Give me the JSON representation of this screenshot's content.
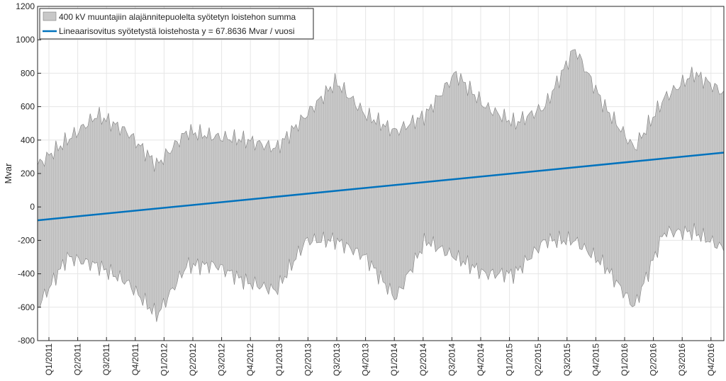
{
  "chart_data": {
    "type": "area",
    "ylabel": "Mvar",
    "ylim": [
      -800,
      1200
    ],
    "y_ticks": [
      -800,
      -600,
      -400,
      -200,
      0,
      200,
      400,
      600,
      800,
      1000,
      1200
    ],
    "x_ticks": [
      "Q1/2011",
      "Q2/2011",
      "Q3/2011",
      "Q4/2011",
      "Q1/2012",
      "Q2/2012",
      "Q3/2012",
      "Q4/2012",
      "Q1/2013",
      "Q2/2013",
      "Q3/2013",
      "Q4/2013",
      "Q1/2014",
      "Q2/2014",
      "Q3/2014",
      "Q4/2014",
      "Q1/2015",
      "Q2/2015",
      "Q3/2015",
      "Q4/2015",
      "Q1/2016",
      "Q2/2016",
      "Q3/2016",
      "Q4/2016"
    ],
    "grid": true,
    "legend_position": "top-left",
    "series": [
      {
        "name": "400 kV muuntajiin alajännitepuolelta syötetyn loistehon summa",
        "kind": "area",
        "color": "#c8c8c8",
        "edge_color": "#7f7f7f",
        "x": [
          "Q1/2011",
          "Q2/2011",
          "Q3/2011",
          "Q4/2011",
          "Q1/2012",
          "Q2/2012",
          "Q3/2012",
          "Q4/2012",
          "Q1/2013",
          "Q2/2013",
          "Q3/2013",
          "Q4/2013",
          "Q1/2014",
          "Q2/2014",
          "Q3/2014",
          "Q4/2014",
          "Q1/2015",
          "Q2/2015",
          "Q3/2015",
          "Q4/2015",
          "Q1/2016",
          "Q2/2016",
          "Q3/2016",
          "Q4/2016"
        ],
        "upper": [
          250,
          400,
          550,
          450,
          250,
          450,
          420,
          400,
          350,
          550,
          750,
          550,
          450,
          550,
          800,
          600,
          500,
          600,
          950,
          600,
          350,
          650,
          800,
          680
        ],
        "lower": [
          -600,
          -300,
          -350,
          -450,
          -650,
          -350,
          -350,
          -450,
          -500,
          -200,
          -200,
          -300,
          -550,
          -200,
          -300,
          -400,
          -400,
          -200,
          -200,
          -350,
          -600,
          -150,
          -150,
          -250
        ]
      },
      {
        "name": "Lineaarisovitus syötetystä loistehosta y = 67.8636 Mvar / vuosi",
        "kind": "line",
        "color": "#0072bd",
        "start": -80,
        "end": 325
      }
    ]
  }
}
